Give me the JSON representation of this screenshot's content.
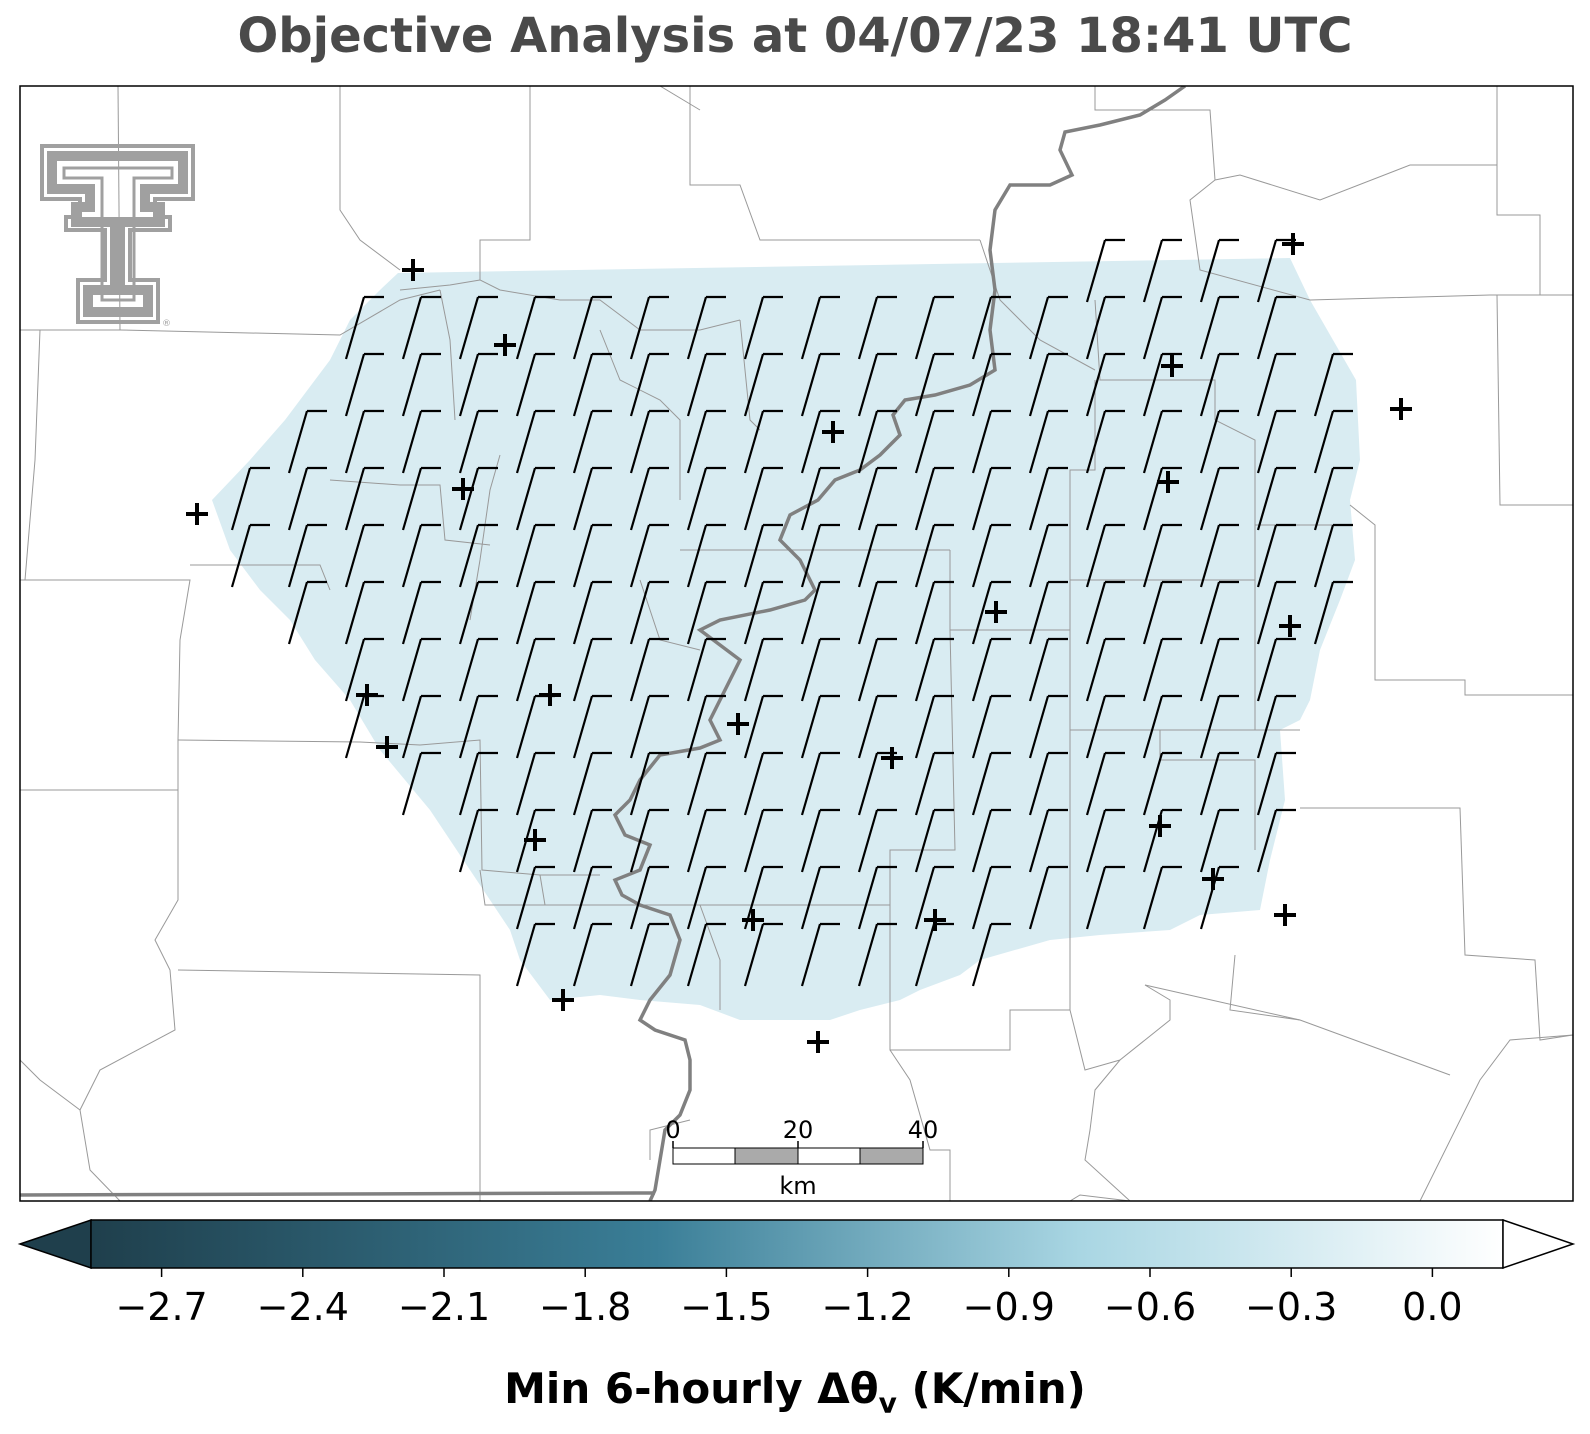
{
  "title": "Objective Analysis at 04/07/23 18:41 UTC",
  "scalebar": {
    "ticks": [
      "0",
      "20",
      "40"
    ],
    "unit": "km"
  },
  "logo": {
    "name": "texas-tech-double-t-logo",
    "text": "®"
  },
  "colorbar": {
    "label_main": "Min 6-hourly Δθ",
    "label_sub": "v",
    "label_unit": " (K/min)",
    "min": -2.85,
    "max": 0.15,
    "tick_values": [
      -2.7,
      -2.4,
      -2.1,
      -1.8,
      -1.5,
      -1.2,
      -0.9,
      -0.6,
      -0.3,
      0.0
    ],
    "tick_labels": [
      "−2.7",
      "−2.4",
      "−2.1",
      "−1.8",
      "−1.5",
      "−1.2",
      "−0.9",
      "−0.6",
      "−0.3",
      "0.0"
    ],
    "colors": [
      "#1f3f4c",
      "#3a7e97",
      "#a9d6e3",
      "#ffffff"
    ],
    "extend": "both"
  },
  "field": {
    "value": -0.45,
    "color": "#d9ecf2"
  },
  "colors": {
    "border": "#999999",
    "river": "#808080",
    "barb": "#000000",
    "station": "#000000",
    "title": "#4a4a4a"
  },
  "station_marker": "plus-icon",
  "wind_barb": "wind-barb-icon"
}
